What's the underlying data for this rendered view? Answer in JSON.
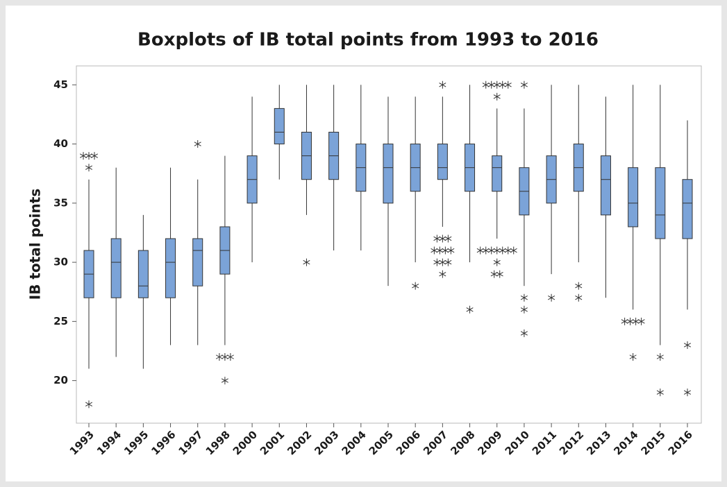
{
  "chart_data": {
    "type": "box",
    "title": "Boxplots of IB total points from 1993 to 2016",
    "y_label": "IB total points",
    "categories": [
      "1993",
      "1994",
      "1995",
      "1996",
      "1997",
      "1998",
      "2000",
      "2001",
      "2002",
      "2003",
      "2004",
      "2005",
      "2006",
      "2007",
      "2008",
      "2009",
      "2010",
      "2011",
      "2012",
      "2013",
      "2014",
      "2015",
      "2016"
    ],
    "boxes": [
      {
        "q1": 27,
        "median": 29,
        "q3": 31,
        "whislo": 21,
        "whishi": 37,
        "outliers": [
          39,
          39,
          39,
          38,
          18
        ]
      },
      {
        "q1": 27,
        "median": 30,
        "q3": 32,
        "whislo": 22,
        "whishi": 38,
        "outliers": []
      },
      {
        "q1": 27,
        "median": 28,
        "q3": 31,
        "whislo": 21,
        "whishi": 34,
        "outliers": []
      },
      {
        "q1": 27,
        "median": 30,
        "q3": 32,
        "whislo": 23,
        "whishi": 38,
        "outliers": []
      },
      {
        "q1": 28,
        "median": 31,
        "q3": 32,
        "whislo": 23,
        "whishi": 37,
        "outliers": [
          40
        ]
      },
      {
        "q1": 29,
        "median": 31,
        "q3": 33,
        "whislo": 23,
        "whishi": 39,
        "outliers": [
          22,
          22,
          22,
          20
        ]
      },
      {
        "q1": 35,
        "median": 37,
        "q3": 39,
        "whislo": 30,
        "whishi": 44,
        "outliers": []
      },
      {
        "q1": 40,
        "median": 41,
        "q3": 43,
        "whislo": 37,
        "whishi": 45,
        "outliers": []
      },
      {
        "q1": 37,
        "median": 39,
        "q3": 41,
        "whislo": 34,
        "whishi": 45,
        "outliers": [
          30
        ]
      },
      {
        "q1": 37,
        "median": 39,
        "q3": 41,
        "whislo": 31,
        "whishi": 45,
        "outliers": []
      },
      {
        "q1": 36,
        "median": 38,
        "q3": 40,
        "whislo": 31,
        "whishi": 45,
        "outliers": []
      },
      {
        "q1": 35,
        "median": 38,
        "q3": 40,
        "whislo": 28,
        "whishi": 44,
        "outliers": []
      },
      {
        "q1": 36,
        "median": 38,
        "q3": 40,
        "whislo": 30,
        "whishi": 44,
        "outliers": [
          28
        ]
      },
      {
        "q1": 37,
        "median": 38,
        "q3": 40,
        "whislo": 33,
        "whishi": 44,
        "outliers": [
          45,
          32,
          32,
          32,
          31,
          31,
          31,
          31,
          30,
          30,
          30,
          29
        ]
      },
      {
        "q1": 36,
        "median": 38,
        "q3": 40,
        "whislo": 30,
        "whishi": 45,
        "outliers": [
          26
        ]
      },
      {
        "q1": 36,
        "median": 38,
        "q3": 39,
        "whislo": 32,
        "whishi": 43,
        "outliers": [
          45,
          45,
          45,
          45,
          45,
          44,
          31,
          31,
          31,
          31,
          31,
          31,
          31,
          30,
          29,
          29
        ]
      },
      {
        "q1": 34,
        "median": 36,
        "q3": 38,
        "whislo": 28,
        "whishi": 43,
        "outliers": [
          45,
          27,
          26,
          24
        ]
      },
      {
        "q1": 35,
        "median": 37,
        "q3": 39,
        "whislo": 29,
        "whishi": 45,
        "outliers": [
          27
        ]
      },
      {
        "q1": 36,
        "median": 38,
        "q3": 40,
        "whislo": 30,
        "whishi": 45,
        "outliers": [
          28,
          27
        ]
      },
      {
        "q1": 34,
        "median": 37,
        "q3": 39,
        "whislo": 27,
        "whishi": 44,
        "outliers": []
      },
      {
        "q1": 33,
        "median": 35,
        "q3": 38,
        "whislo": 26,
        "whishi": 45,
        "outliers": [
          25,
          25,
          25,
          25,
          22
        ]
      },
      {
        "q1": 32,
        "median": 34,
        "q3": 38,
        "whislo": 23,
        "whishi": 45,
        "outliers": [
          22,
          19
        ]
      },
      {
        "q1": 32,
        "median": 35,
        "q3": 37,
        "whislo": 26,
        "whishi": 42,
        "outliers": [
          23,
          19
        ]
      }
    ],
    "color": "#7ba3d8",
    "ylim": [
      16.4,
      46.6
    ],
    "yticks": [
      20,
      25,
      30,
      35,
      40,
      45
    ]
  }
}
